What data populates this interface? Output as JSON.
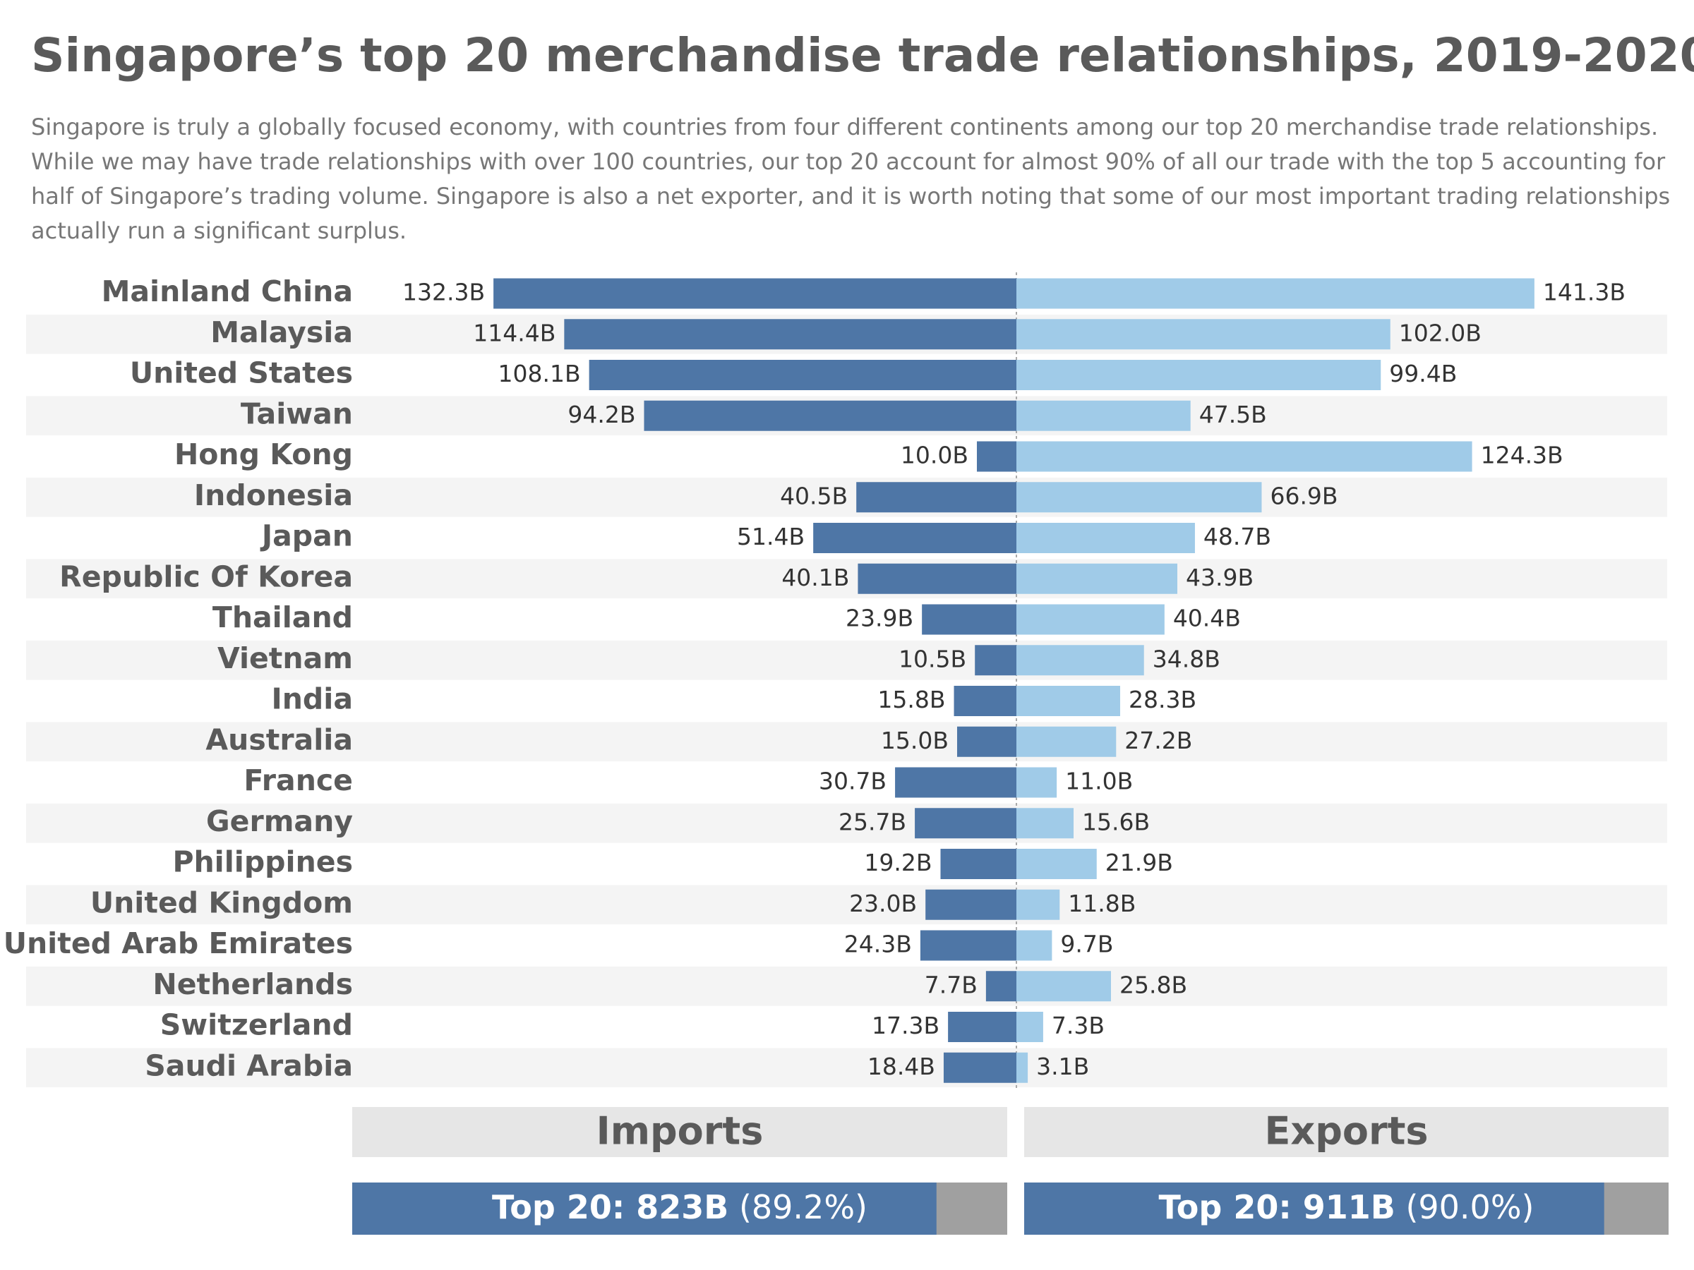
{
  "chart_data": {
    "type": "butterfly",
    "title": "Singapore’s top 20 merchandise trade relationships, 2019-2020",
    "subtitle": "Singapore is truly a globally focused economy, with countries from four different continents among our top 20 merchandise trade relationships. While we may have trade relationships with over 100 countries, our top 20 account for almost 90% of all our trade with the top 5 accounting for half of Singapore’s trading volume. Singapore is also a net exporter, and it is worth noting that some of our most important trading relationships actually run a significant surplus.",
    "categories": [
      "Mainland China",
      "Malaysia",
      "United States",
      "Taiwan",
      "Hong Kong",
      "Indonesia",
      "Japan",
      "Republic Of Korea",
      "Thailand",
      "Vietnam",
      "India",
      "Australia",
      "France",
      "Germany",
      "Philippines",
      "United Kingdom",
      "United Arab Emirates",
      "Netherlands",
      "Switzerland",
      "Saudi Arabia"
    ],
    "series": [
      {
        "name": "Imports",
        "color": "#4e76a6",
        "xlim": [
          0,
          150
        ],
        "values": [
          132.3,
          114.4,
          108.1,
          94.2,
          10.0,
          40.5,
          51.4,
          40.1,
          23.9,
          10.5,
          15.8,
          15.0,
          30.7,
          25.7,
          19.2,
          23.0,
          24.3,
          7.7,
          17.3,
          18.4
        ],
        "value_labels": [
          "132.3B",
          "114.4B",
          "108.1B",
          "94.2B",
          "10.0B",
          "40.5B",
          "51.4B",
          "40.1B",
          "23.9B",
          "10.5B",
          "15.8B",
          "15.0B",
          "30.7B",
          "25.7B",
          "19.2B",
          "23.0B",
          "24.3B",
          "7.7B",
          "17.3B",
          "18.4B"
        ],
        "summary": {
          "total_label": "Top 20: 823B",
          "share_label": "(89.2%)",
          "share": 89.2,
          "rest_color": "#a0a0a0"
        }
      },
      {
        "name": "Exports",
        "color": "#a0cbe8",
        "xlim": [
          0,
          160
        ],
        "values": [
          141.3,
          102.0,
          99.4,
          47.5,
          124.3,
          66.9,
          48.7,
          43.9,
          40.4,
          34.8,
          28.3,
          27.2,
          11.0,
          15.6,
          21.9,
          11.8,
          9.7,
          25.8,
          7.3,
          3.1
        ],
        "value_labels": [
          "141.3B",
          "102.0B",
          "99.4B",
          "47.5B",
          "124.3B",
          "66.9B",
          "48.7B",
          "43.9B",
          "40.4B",
          "34.8B",
          "28.3B",
          "27.2B",
          "11.0B",
          "15.6B",
          "21.9B",
          "11.8B",
          "9.7B",
          "25.8B",
          "7.3B",
          "3.1B"
        ],
        "summary": {
          "total_label": "Top 20: 911B",
          "share_label": "(90.0%)",
          "share": 90.0,
          "rest_color": "#a0a0a0",
          "bar_color": "#4e76a6"
        }
      }
    ]
  }
}
